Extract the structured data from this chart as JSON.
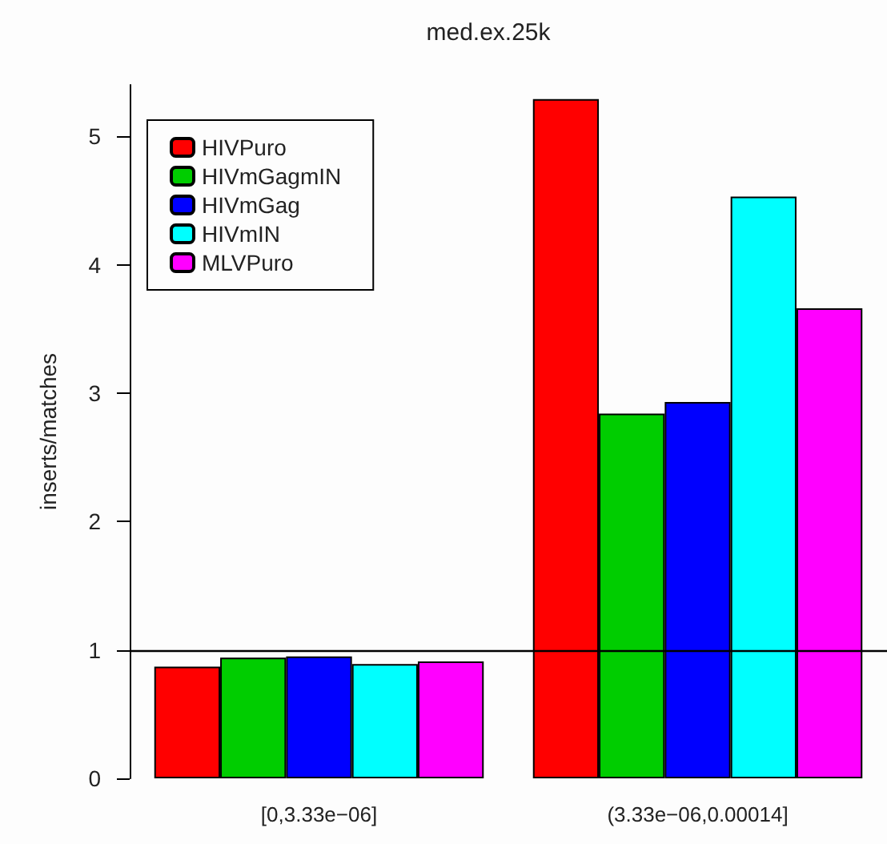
{
  "chart_data": {
    "type": "bar",
    "title": "med.ex.25k",
    "ylabel": "inserts/matches",
    "categories": [
      "[0,3.33e−06]",
      "(3.33e−06,0.00014]"
    ],
    "series": [
      {
        "name": "HIVPuro",
        "color": "#ff0000",
        "values": [
          0.87,
          5.29
        ]
      },
      {
        "name": "HIVmGagmIN",
        "color": "#00cd00",
        "values": [
          0.94,
          2.84
        ]
      },
      {
        "name": "HIVmGag",
        "color": "#0000ff",
        "values": [
          0.95,
          2.93
        ]
      },
      {
        "name": "HIVmIN",
        "color": "#00ffff",
        "values": [
          0.89,
          4.53
        ]
      },
      {
        "name": "MLVPuro",
        "color": "#ff00ff",
        "values": [
          0.91,
          3.66
        ]
      }
    ],
    "ylim": [
      0,
      5.4
    ],
    "yticks": [
      0,
      1,
      2,
      3,
      4,
      5
    ],
    "ref_lines": [
      {
        "axis": "y",
        "value": 1,
        "color": "#000000"
      }
    ],
    "grid": false,
    "legend": "top left"
  }
}
